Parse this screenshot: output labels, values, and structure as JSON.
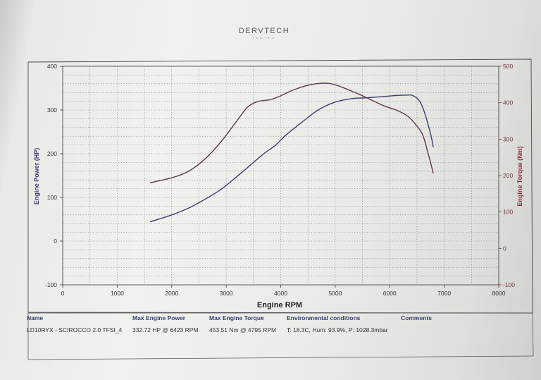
{
  "logo": {
    "name": "DERVTECH",
    "tagline": "TUNING"
  },
  "chart_data": {
    "type": "line",
    "xlabel": "Engine RPM",
    "ylabel_left": "Engine Power (HP)",
    "ylabel_right": "Engine Torque (Nm)",
    "xlim": [
      0,
      8000
    ],
    "ylim_left": [
      -100,
      400
    ],
    "ylim_right": [
      -100,
      500
    ],
    "x_ticks": [
      0,
      1000,
      2000,
      3000,
      4000,
      5000,
      6000,
      7000,
      8000
    ],
    "y_ticks_left": [
      -100,
      0,
      100,
      200,
      300,
      400
    ],
    "y_ticks_right": [
      -100,
      0,
      100,
      200,
      300,
      400,
      500
    ],
    "grid": true,
    "series": [
      {
        "axis": "left",
        "color": "#3c3f72",
        "x": [
          1600,
          2000,
          2300,
          2600,
          2900,
          3200,
          3500,
          3700,
          3900,
          4100,
          4400,
          4700,
          5000,
          5300,
          5600,
          5900,
          6100,
          6300,
          6423,
          6550,
          6650,
          6750,
          6800
        ],
        "y": [
          44,
          60,
          75,
          95,
          118,
          148,
          180,
          201,
          219,
          243,
          273,
          301,
          318,
          326,
          328,
          331,
          333,
          334,
          333,
          320,
          290,
          245,
          215
        ]
      },
      {
        "axis": "right",
        "color": "#5e3a4f",
        "x": [
          1600,
          2000,
          2300,
          2600,
          2900,
          3200,
          3400,
          3600,
          3800,
          4000,
          4200,
          4500,
          4795,
          5000,
          5300,
          5600,
          5900,
          6100,
          6300,
          6450,
          6600,
          6700,
          6800
        ],
        "y": [
          180,
          194,
          211,
          244,
          292,
          351,
          389,
          404,
          408,
          419,
          433,
          448,
          453.51,
          449,
          432,
          412,
          391,
          381,
          366,
          345,
          313,
          263,
          206
        ]
      }
    ]
  },
  "info": {
    "headers": {
      "name": "Name",
      "power": "Max Engine Power",
      "torque": "Max Engine Torque",
      "env": "Environmental conditions",
      "comments": "Comments"
    },
    "values": {
      "name": "LD10RYX - SCIROCCO 2.0 TFSI_4",
      "power": "332.72 HP @ 6423 RPM",
      "torque": "453.51 Nm @ 4795 RPM",
      "env": "T: 18.3C, Hum: 93.9%, P: 1028.3mbar",
      "comments": ""
    }
  }
}
